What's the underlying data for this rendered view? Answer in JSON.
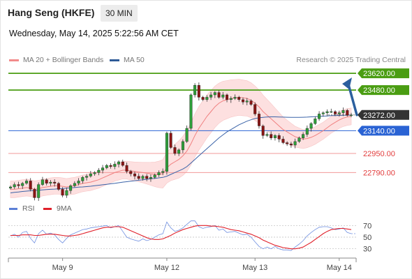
{
  "header": {
    "title": "Hang Seng (HKFE)",
    "interval": "30 MIN",
    "datetime": "Wednesday, May 14, 2025 5:22:56 AM CET"
  },
  "legend": {
    "items": [
      {
        "label": "MA 20 + Bollinger Bands",
        "color": "#f28b8b"
      },
      {
        "label": "MA 50",
        "color": "#2e5a97"
      }
    ],
    "copyright": "Research © 2025 Trading Central"
  },
  "rsi_legend": {
    "items": [
      {
        "label": "RSI",
        "color": "#5b7fd6"
      },
      {
        "label": "9MA",
        "color": "#e0202a"
      }
    ]
  },
  "colors": {
    "resistance": "#4a9d12",
    "support_line": "#2a63d4",
    "pivot_red": "#f29a9a",
    "last_price_tag": "#333333",
    "arrow": "#2c5f9e",
    "candle_up": "#2e9f3a",
    "candle_down": "#8a1414",
    "band_fill": "#fde0e0"
  },
  "chart_data": [
    {
      "type": "candlestick",
      "title": "Hang Seng (HKFE)",
      "interval": "30 MIN",
      "x_labels": [
        "May 9",
        "May 12",
        "May 13",
        "May 14"
      ],
      "y_range": [
        22600,
        23650
      ],
      "levels": [
        {
          "value": 23620.0,
          "label": "23620.00",
          "kind": "resistance"
        },
        {
          "value": 23480.0,
          "label": "23480.00",
          "kind": "resistance"
        },
        {
          "value": 23272.0,
          "label": "23272.00",
          "kind": "last"
        },
        {
          "value": 23140.0,
          "label": "23140.00",
          "kind": "support"
        },
        {
          "value": 22950.0,
          "label": "22950.00",
          "kind": "pivot"
        },
        {
          "value": 22790.0,
          "label": "22790.00",
          "kind": "pivot"
        }
      ],
      "close": [
        22670,
        22690,
        22680,
        22700,
        22720,
        22650,
        22580,
        22690,
        22730,
        22700,
        22710,
        22700,
        22650,
        22600,
        22640,
        22680,
        22700,
        22720,
        22750,
        22760,
        22780,
        22790,
        22810,
        22830,
        22850,
        22840,
        22860,
        22880,
        22850,
        22800,
        22780,
        22760,
        22740,
        22760,
        22740,
        22750,
        22770,
        22790,
        22800,
        23120,
        23000,
        22950,
        22980,
        23050,
        23160,
        23440,
        23520,
        23420,
        23400,
        23420,
        23440,
        23460,
        23420,
        23440,
        23400,
        23410,
        23420,
        23400,
        23380,
        23390,
        23360,
        23280,
        23180,
        23100,
        23110,
        23080,
        23100,
        23070,
        23040,
        23030,
        23020,
        23050,
        23080,
        23110,
        23160,
        23200,
        23240,
        23280,
        23290,
        23300,
        23300,
        23280,
        23290,
        23310,
        23270,
        23272
      ],
      "ma20": [
        22650,
        22650,
        22655,
        22660,
        22665,
        22660,
        22650,
        22655,
        22665,
        22670,
        22675,
        22680,
        22680,
        22675,
        22670,
        22675,
        22680,
        22690,
        22700,
        22705,
        22710,
        22720,
        22730,
        22745,
        22760,
        22775,
        22790,
        22800,
        22810,
        22810,
        22805,
        22800,
        22795,
        22790,
        22785,
        22780,
        22775,
        22775,
        22780,
        22830,
        22860,
        22880,
        22900,
        22930,
        22970,
        23030,
        23100,
        23160,
        23210,
        23260,
        23300,
        23340,
        23370,
        23390,
        23400,
        23410,
        23415,
        23420,
        23415,
        23410,
        23395,
        23370,
        23340,
        23300,
        23270,
        23240,
        23210,
        23180,
        23150,
        23130,
        23110,
        23090,
        23080,
        23070,
        23075,
        23085,
        23100,
        23120,
        23140,
        23165,
        23190,
        23210,
        23230,
        23245,
        23255,
        23260
      ],
      "ma50": [
        22620,
        22625,
        22628,
        22632,
        22635,
        22638,
        22640,
        22642,
        22645,
        22648,
        22650,
        22652,
        22655,
        22657,
        22660,
        22662,
        22665,
        22668,
        22670,
        22673,
        22676,
        22680,
        22684,
        22688,
        22692,
        22696,
        22700,
        22705,
        22710,
        22714,
        22718,
        22722,
        22726,
        22730,
        22734,
        22738,
        22742,
        22746,
        22750,
        22760,
        22775,
        22790,
        22805,
        22820,
        22840,
        22870,
        22900,
        22930,
        22960,
        22990,
        23020,
        23050,
        23080,
        23105,
        23130,
        23150,
        23170,
        23190,
        23205,
        23220,
        23232,
        23242,
        23248,
        23252,
        23255,
        23256,
        23256,
        23255,
        23254,
        23253,
        23252,
        23252,
        23252,
        23253,
        23254,
        23256,
        23258,
        23260,
        23262,
        23264,
        23266,
        23267,
        23268,
        23269,
        23270,
        23271
      ]
    },
    {
      "type": "line",
      "title": "RSI",
      "y_ticks": [
        70,
        50,
        30
      ],
      "y_range": [
        20,
        80
      ],
      "series": [
        {
          "name": "RSI",
          "values": [
            52,
            55,
            50,
            58,
            60,
            48,
            40,
            56,
            62,
            55,
            57,
            54,
            46,
            40,
            48,
            54,
            57,
            60,
            63,
            64,
            66,
            67,
            68,
            69,
            70,
            66,
            68,
            70,
            60,
            50,
            47,
            45,
            43,
            47,
            44,
            46,
            50,
            54,
            56,
            76,
            66,
            60,
            62,
            66,
            72,
            78,
            78,
            68,
            65,
            67,
            68,
            70,
            62,
            64,
            58,
            59,
            60,
            57,
            54,
            55,
            50,
            42,
            34,
            30,
            33,
            30,
            34,
            30,
            28,
            28,
            27,
            33,
            38,
            44,
            52,
            58,
            63,
            67,
            68,
            68,
            66,
            63,
            64,
            66,
            58,
            56
          ]
        },
        {
          "name": "9MA",
          "values": [
            53,
            53,
            53,
            54,
            54,
            54,
            53,
            53,
            54,
            55,
            55,
            55,
            54,
            53,
            52,
            52,
            53,
            54,
            56,
            58,
            60,
            62,
            64,
            66,
            67,
            67,
            68,
            68,
            67,
            64,
            61,
            58,
            55,
            52,
            49,
            47,
            46,
            46,
            47,
            50,
            53,
            57,
            60,
            63,
            65,
            67,
            69,
            70,
            70,
            70,
            69,
            69,
            68,
            67,
            65,
            63,
            62,
            61,
            59,
            57,
            55,
            52,
            49,
            45,
            42,
            39,
            36,
            34,
            32,
            31,
            30,
            30,
            31,
            33,
            37,
            41,
            46,
            51,
            56,
            60,
            63,
            64,
            65,
            65,
            64,
            63
          ]
        }
      ]
    }
  ]
}
